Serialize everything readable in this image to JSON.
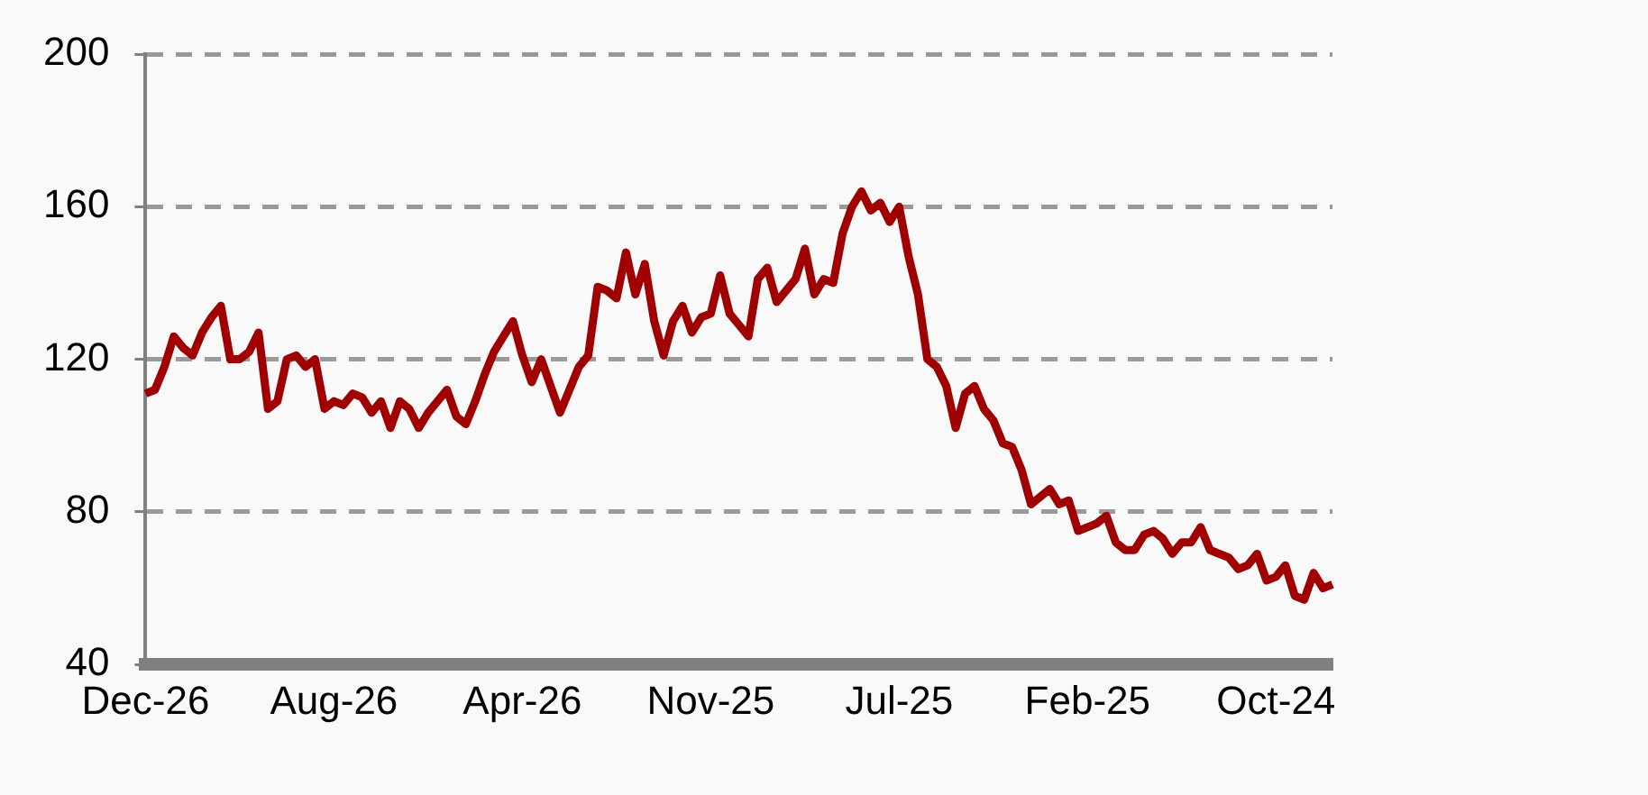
{
  "chart_data": {
    "type": "line",
    "categories": [
      "Dec-26",
      null,
      null,
      null,
      null,
      null,
      null,
      null,
      null,
      null,
      null,
      null,
      null,
      null,
      null,
      null,
      null,
      null,
      null,
      null,
      "Aug-26",
      null,
      null,
      null,
      null,
      null,
      null,
      null,
      null,
      null,
      null,
      null,
      null,
      null,
      null,
      null,
      null,
      null,
      null,
      null,
      "Apr-26",
      null,
      null,
      null,
      null,
      null,
      null,
      null,
      null,
      null,
      null,
      null,
      null,
      null,
      null,
      null,
      null,
      null,
      null,
      null,
      "Nov-25",
      null,
      null,
      null,
      null,
      null,
      null,
      null,
      null,
      null,
      null,
      null,
      null,
      null,
      null,
      null,
      null,
      null,
      null,
      null,
      "Jul-25",
      null,
      null,
      null,
      null,
      null,
      null,
      null,
      null,
      null,
      null,
      null,
      null,
      null,
      null,
      null,
      null,
      null,
      null,
      null,
      "Feb-25",
      null,
      null,
      null,
      null,
      null,
      null,
      null,
      null,
      null,
      null,
      null,
      null,
      null,
      null,
      null,
      null,
      null,
      null,
      null,
      "Oct-24",
      null,
      null,
      null,
      null,
      null,
      null
    ],
    "series": [
      {
        "color": "#a00000",
        "values": [
          111,
          112,
          118,
          126,
          123,
          121,
          127,
          131,
          134,
          120,
          120,
          122,
          127,
          107,
          109,
          120,
          121,
          118,
          120,
          107,
          109,
          108,
          111,
          110,
          106,
          109,
          102,
          109,
          107,
          102,
          106,
          109,
          112,
          105,
          103,
          109,
          116,
          122,
          126,
          130,
          121,
          114,
          120,
          113,
          106,
          112,
          118,
          121,
          139,
          138,
          136,
          148,
          137,
          145,
          130,
          121,
          130,
          134,
          127,
          131,
          132,
          142,
          132,
          129,
          126,
          141,
          144,
          135,
          138,
          141,
          149,
          137,
          141,
          140,
          153,
          160,
          164,
          159,
          161,
          156,
          160,
          147,
          137,
          120,
          118,
          113,
          102,
          111,
          113,
          107,
          104,
          98,
          97,
          91,
          82,
          84,
          86,
          82,
          83,
          75,
          76,
          77,
          79,
          72,
          70,
          70,
          74,
          75,
          73,
          69,
          72,
          72,
          76,
          70,
          69,
          68,
          65,
          66,
          69,
          62,
          63,
          66,
          58,
          57,
          64,
          60,
          61
        ]
      }
    ],
    "ylim": [
      40,
      200
    ],
    "yticks": [
      40,
      80,
      120,
      160,
      200
    ],
    "grid": "y",
    "legend": false,
    "marker": "none",
    "line_style": "solid"
  }
}
